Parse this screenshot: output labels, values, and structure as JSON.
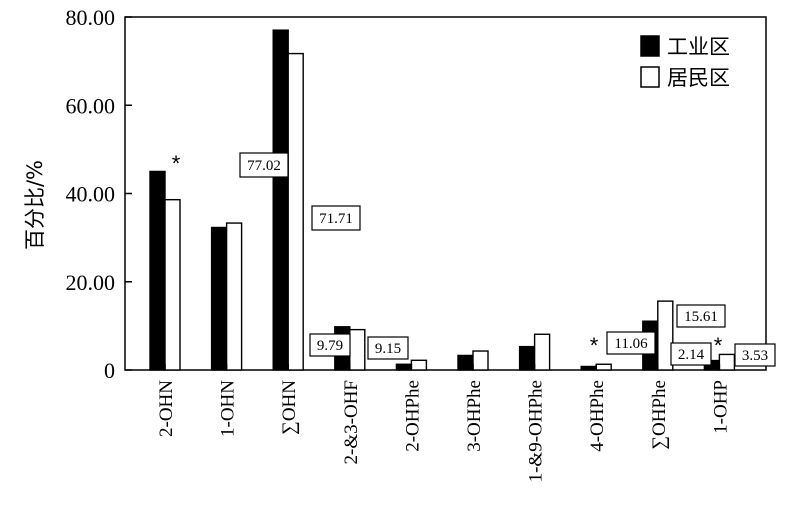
{
  "chart_data": {
    "type": "bar",
    "ylabel": "百分比/%",
    "ylim": [
      0,
      80
    ],
    "yticks": [
      "0",
      "20.00",
      "40.00",
      "60.00",
      "80.00"
    ],
    "categories": [
      "2-OHN",
      "1-OHN",
      "∑OHN",
      "2-&3-OHF",
      "2-OHPhe",
      "3-OHPhe",
      "1-&9-OHPhe",
      "4-OHPhe",
      "∑OHPhe",
      "1-OHP"
    ],
    "series": [
      {
        "name": "工业区",
        "color": "#000000",
        "values": [
          45.0,
          32.3,
          77.02,
          9.79,
          1.3,
          3.3,
          5.3,
          0.8,
          11.06,
          2.14
        ]
      },
      {
        "name": "居民区",
        "color": "#ffffff",
        "values": [
          38.6,
          33.3,
          71.71,
          9.15,
          2.2,
          4.3,
          8.1,
          1.3,
          15.61,
          3.53
        ]
      }
    ],
    "data_labels": [
      "77.02",
      "71.71",
      "9.79",
      "9.15",
      "11.06",
      "15.61",
      "2.14",
      "3.53"
    ],
    "significance_marker": "*",
    "legend_position": "top-right",
    "grid": false
  }
}
